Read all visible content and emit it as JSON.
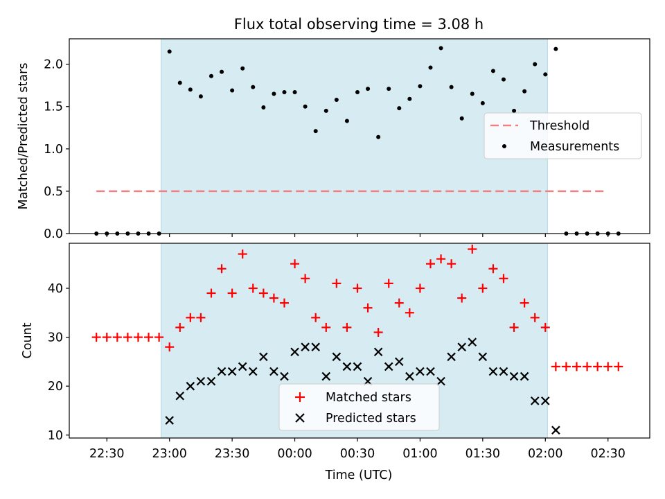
{
  "chart_data": {
    "type": "scatter",
    "title": "Flux total observing time = 3.08 h",
    "xlabel": "Time (UTC)",
    "x_ticks": [
      "22:30",
      "23:00",
      "23:30",
      "00:00",
      "00:30",
      "01:00",
      "01:30",
      "02:00",
      "02:30"
    ],
    "x_range": [
      "22:12",
      "02:50"
    ],
    "shaded_interval": [
      "22:56",
      "02:01"
    ],
    "shade_color": "#add8e6",
    "top": {
      "ylabel": "Matched/Predicted stars",
      "ylim": [
        0,
        2.3
      ],
      "y_ticks": [
        "0.0",
        "0.5",
        "1.0",
        "1.5",
        "2.0"
      ],
      "threshold": {
        "name": "Threshold",
        "value": 0.5,
        "x_range": [
          "22:25",
          "02:29"
        ],
        "color": "#f08080"
      },
      "measurements_name": "Measurements",
      "measurements": [
        [
          "22:25",
          0.0
        ],
        [
          "22:30",
          0.0
        ],
        [
          "22:35",
          0.0
        ],
        [
          "22:40",
          0.0
        ],
        [
          "22:45",
          0.0
        ],
        [
          "22:50",
          0.0
        ],
        [
          "22:55",
          0.0
        ],
        [
          "23:00",
          2.15
        ],
        [
          "23:05",
          1.78
        ],
        [
          "23:10",
          1.7
        ],
        [
          "23:15",
          1.62
        ],
        [
          "23:20",
          1.86
        ],
        [
          "23:25",
          1.91
        ],
        [
          "23:30",
          1.69
        ],
        [
          "23:35",
          1.95
        ],
        [
          "23:40",
          1.73
        ],
        [
          "23:45",
          1.49
        ],
        [
          "23:50",
          1.65
        ],
        [
          "23:55",
          1.67
        ],
        [
          "00:00",
          1.67
        ],
        [
          "00:05",
          1.5
        ],
        [
          "00:10",
          1.21
        ],
        [
          "00:15",
          1.45
        ],
        [
          "00:20",
          1.58
        ],
        [
          "00:25",
          1.33
        ],
        [
          "00:30",
          1.67
        ],
        [
          "00:35",
          1.71
        ],
        [
          "00:40",
          1.14
        ],
        [
          "00:45",
          1.71
        ],
        [
          "00:50",
          1.48
        ],
        [
          "00:55",
          1.59
        ],
        [
          "01:00",
          1.74
        ],
        [
          "01:05",
          1.96
        ],
        [
          "01:10",
          2.19
        ],
        [
          "01:15",
          1.73
        ],
        [
          "01:20",
          1.36
        ],
        [
          "01:25",
          1.65
        ],
        [
          "01:30",
          1.54
        ],
        [
          "01:35",
          1.92
        ],
        [
          "01:40",
          1.82
        ],
        [
          "01:45",
          1.45
        ],
        [
          "01:50",
          1.68
        ],
        [
          "01:55",
          2.0
        ],
        [
          "02:00",
          1.88
        ],
        [
          "02:05",
          2.18
        ],
        [
          "02:10",
          0.0
        ],
        [
          "02:15",
          0.0
        ],
        [
          "02:20",
          0.0
        ],
        [
          "02:25",
          0.0
        ],
        [
          "02:30",
          0.0
        ],
        [
          "02:35",
          0.0
        ]
      ]
    },
    "bottom": {
      "ylabel": "Count",
      "ylim": [
        9.4,
        49.2
      ],
      "y_ticks": [
        "10",
        "20",
        "30",
        "40"
      ],
      "series": [
        {
          "name": "Matched stars",
          "marker": "plus",
          "color": "#ff0000",
          "points": [
            [
              "22:25",
              30
            ],
            [
              "22:30",
              30
            ],
            [
              "22:35",
              30
            ],
            [
              "22:40",
              30
            ],
            [
              "22:45",
              30
            ],
            [
              "22:50",
              30
            ],
            [
              "22:55",
              30
            ],
            [
              "23:00",
              28
            ],
            [
              "23:05",
              32
            ],
            [
              "23:10",
              34
            ],
            [
              "23:15",
              34
            ],
            [
              "23:20",
              39
            ],
            [
              "23:25",
              44
            ],
            [
              "23:30",
              39
            ],
            [
              "23:35",
              47
            ],
            [
              "23:40",
              40
            ],
            [
              "23:45",
              39
            ],
            [
              "23:50",
              38
            ],
            [
              "23:55",
              37
            ],
            [
              "00:00",
              45
            ],
            [
              "00:05",
              42
            ],
            [
              "00:10",
              34
            ],
            [
              "00:15",
              32
            ],
            [
              "00:20",
              41
            ],
            [
              "00:25",
              32
            ],
            [
              "00:30",
              40
            ],
            [
              "00:35",
              36
            ],
            [
              "00:40",
              31
            ],
            [
              "00:45",
              41
            ],
            [
              "00:50",
              37
            ],
            [
              "00:55",
              35
            ],
            [
              "01:00",
              40
            ],
            [
              "01:05",
              45
            ],
            [
              "01:10",
              46
            ],
            [
              "01:15",
              45
            ],
            [
              "01:20",
              38
            ],
            [
              "01:25",
              48
            ],
            [
              "01:30",
              40
            ],
            [
              "01:35",
              44
            ],
            [
              "01:40",
              42
            ],
            [
              "01:45",
              32
            ],
            [
              "01:50",
              37
            ],
            [
              "01:55",
              34
            ],
            [
              "02:00",
              32
            ],
            [
              "02:05",
              24
            ],
            [
              "02:10",
              24
            ],
            [
              "02:15",
              24
            ],
            [
              "02:20",
              24
            ],
            [
              "02:25",
              24
            ],
            [
              "02:30",
              24
            ],
            [
              "02:35",
              24
            ]
          ]
        },
        {
          "name": "Predicted stars",
          "marker": "x",
          "color": "#000000",
          "points": [
            [
              "23:00",
              13
            ],
            [
              "23:05",
              18
            ],
            [
              "23:10",
              20
            ],
            [
              "23:15",
              21
            ],
            [
              "23:20",
              21
            ],
            [
              "23:25",
              23
            ],
            [
              "23:30",
              23
            ],
            [
              "23:35",
              24
            ],
            [
              "23:40",
              23
            ],
            [
              "23:45",
              26
            ],
            [
              "23:50",
              23
            ],
            [
              "23:55",
              22
            ],
            [
              "00:00",
              27
            ],
            [
              "00:05",
              28
            ],
            [
              "00:10",
              28
            ],
            [
              "00:15",
              22
            ],
            [
              "00:20",
              26
            ],
            [
              "00:25",
              24
            ],
            [
              "00:30",
              24
            ],
            [
              "00:35",
              21
            ],
            [
              "00:40",
              27
            ],
            [
              "00:45",
              24
            ],
            [
              "00:50",
              25
            ],
            [
              "00:55",
              22
            ],
            [
              "01:00",
              23
            ],
            [
              "01:05",
              23
            ],
            [
              "01:10",
              21
            ],
            [
              "01:15",
              26
            ],
            [
              "01:20",
              28
            ],
            [
              "01:25",
              29
            ],
            [
              "01:30",
              26
            ],
            [
              "01:35",
              23
            ],
            [
              "01:40",
              23
            ],
            [
              "01:45",
              22
            ],
            [
              "01:50",
              22
            ],
            [
              "01:55",
              17
            ],
            [
              "02:00",
              17
            ],
            [
              "02:05",
              11
            ]
          ]
        }
      ]
    }
  }
}
